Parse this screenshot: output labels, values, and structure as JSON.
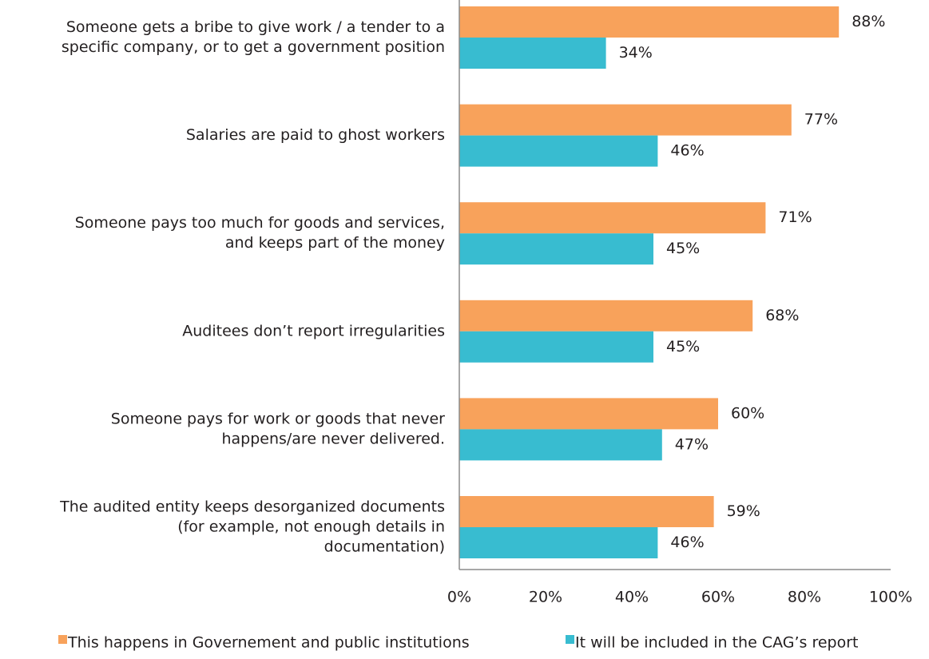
{
  "chart_data": {
    "type": "bar",
    "orientation": "horizontal",
    "categories": [
      [
        "Someone gets a bribe to give work / a tender to a",
        "specific company, or to get a government position"
      ],
      [
        "Salaries are paid to ghost workers"
      ],
      [
        "Someone pays too much for goods and services,",
        "and keeps part of the money"
      ],
      [
        "Auditees don’t report irregularities"
      ],
      [
        "Someone pays for work or goods that never",
        "happens/are never delivered."
      ],
      [
        "The audited entity keeps desorganized documents",
        "(for example, not enough details in",
        "documentation)"
      ]
    ],
    "series": [
      {
        "name": "This happens in Governement and public institutions",
        "color": "#f8a25b",
        "values": [
          88,
          77,
          71,
          68,
          60,
          59
        ],
        "value_labels": [
          "88%",
          "77%",
          "71%",
          "68%",
          "60%",
          "59%"
        ]
      },
      {
        "name": "It will be included in the CAG’s report",
        "color": "#38bcd0",
        "values": [
          34,
          46,
          45,
          45,
          47,
          46
        ],
        "value_labels": [
          "34%",
          "46%",
          "45%",
          "45%",
          "47%",
          "46%"
        ]
      }
    ],
    "xlim": [
      0,
      100
    ],
    "xticks": [
      {
        "value": 0,
        "label": "0%"
      },
      {
        "value": 20,
        "label": "20%"
      },
      {
        "value": 40,
        "label": "40%"
      },
      {
        "value": 60,
        "label": "60%"
      },
      {
        "value": 80,
        "label": "80%"
      },
      {
        "value": 100,
        "label": "100%"
      }
    ],
    "legend": "bottom"
  }
}
